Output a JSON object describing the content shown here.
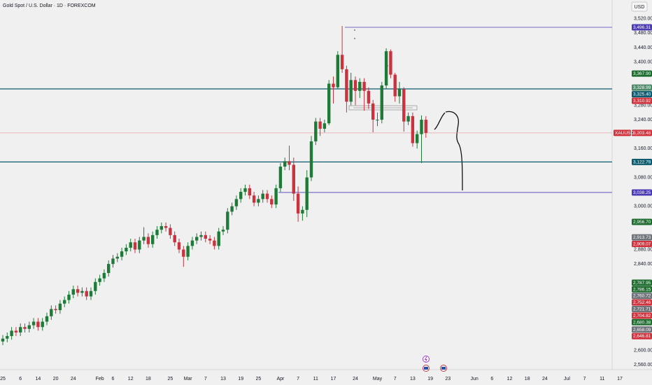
{
  "chart_data": {
    "type": "candlestick",
    "title": "Gold Spot / U.S. Dollar · 1D · FOREXCOM",
    "currency": "USD",
    "categories": [
      "25",
      null,
      null,
      null,
      "6",
      null,
      null,
      null,
      "14",
      null,
      null,
      null,
      "20",
      null,
      null,
      null,
      "24",
      null,
      null,
      null,
      null,
      null,
      "Feb",
      null,
      null,
      "6",
      null,
      null,
      null,
      "12",
      null,
      null,
      null,
      "18",
      null,
      null,
      null,
      null,
      "25",
      null,
      null,
      null,
      "Mar",
      null,
      null,
      null,
      "7",
      null,
      null,
      null,
      "13",
      null,
      null,
      null,
      "19",
      null,
      null,
      null,
      "25",
      null,
      null,
      null,
      null,
      "Apr",
      null,
      null,
      null,
      "7",
      null,
      null,
      null,
      "11",
      null,
      null,
      null,
      "17",
      null,
      null,
      null,
      null,
      "24",
      null,
      null,
      null,
      null,
      "May",
      null,
      null,
      null,
      "7",
      null,
      null,
      null,
      "13",
      null,
      null,
      null,
      "19",
      null,
      null,
      null,
      "23",
      null,
      null,
      null,
      null,
      null,
      "Jun",
      null,
      null,
      null,
      "6",
      null,
      null,
      null,
      "12",
      null,
      null,
      null,
      "18",
      null,
      null,
      null,
      "24",
      null,
      null,
      null,
      null,
      "Jul",
      null,
      null,
      null,
      "7",
      null,
      null,
      null,
      "11",
      null,
      null,
      null,
      "17"
    ],
    "open": [
      2625,
      2633,
      2640,
      2655,
      2650,
      2665,
      2660,
      2670,
      2680,
      2665,
      2680,
      2695,
      2715,
      2712,
      2730,
      2740,
      2755,
      2770,
      2760,
      2765,
      2750,
      2765,
      2790,
      2800,
      2815,
      2840,
      2855,
      2860,
      2875,
      2885,
      2900,
      2880,
      2905,
      2915,
      2895,
      2920,
      2935,
      2945,
      2940,
      2920,
      2900,
      2880,
      2860,
      2890,
      2905,
      2915,
      2920,
      2910,
      2905,
      2890,
      2930,
      2935,
      2985,
      3000,
      3020,
      3040,
      3050,
      3030,
      3010,
      3020,
      3035,
      3020,
      3005,
      3050,
      3110,
      3125,
      3115,
      3035,
      2980,
      2990,
      3080,
      3180,
      3235,
      3215,
      3230,
      3340,
      3330,
      3420,
      3380,
      3290,
      3350,
      3320,
      3345,
      3320,
      3285,
      3240,
      3240,
      3335,
      3430,
      3365,
      3305,
      3325,
      3235,
      3250,
      3175,
      3200,
      3240,
      null,
      null,
      null,
      null,
      null,
      null,
      null,
      null,
      null,
      null,
      null,
      null,
      null,
      null,
      null,
      null,
      null,
      null,
      null,
      null,
      null,
      null,
      null,
      null,
      null,
      null,
      null,
      null,
      null,
      null,
      null,
      null,
      null,
      null,
      null,
      null,
      null,
      null,
      null,
      null,
      null,
      null,
      null,
      null
    ],
    "high": [
      2643,
      2650,
      2665,
      2665,
      2675,
      2675,
      2680,
      2690,
      2690,
      2690,
      2705,
      2725,
      2725,
      2740,
      2750,
      2765,
      2780,
      2780,
      2775,
      2775,
      2775,
      2800,
      2810,
      2825,
      2850,
      2865,
      2870,
      2885,
      2895,
      2910,
      2910,
      2915,
      2942,
      2925,
      2930,
      2945,
      2955,
      2955,
      2950,
      2930,
      2910,
      2890,
      2900,
      2915,
      2925,
      2930,
      2930,
      2920,
      2915,
      2940,
      2945,
      2995,
      3010,
      3030,
      3050,
      3060,
      3060,
      3040,
      3030,
      3045,
      3045,
      3030,
      3060,
      3120,
      3135,
      3168,
      3135,
      3055,
      3000,
      3100,
      3195,
      3245,
      3245,
      3240,
      3350,
      3360,
      3430,
      3500,
      3390,
      3370,
      3360,
      3355,
      3355,
      3330,
      3295,
      3260,
      3345,
      3438,
      3435,
      3370,
      3345,
      3330,
      3260,
      3260,
      3210,
      3252,
      3250,
      null,
      null,
      null,
      null,
      null,
      null,
      null,
      null,
      null,
      null,
      null,
      null,
      null,
      null,
      null,
      null,
      null,
      null,
      null,
      null,
      null,
      null,
      null,
      null,
      null,
      null,
      null,
      null,
      null,
      null,
      null,
      null,
      null,
      null,
      null,
      null,
      null,
      null,
      null,
      null,
      null,
      null,
      null,
      null
    ],
    "low": [
      2615,
      2623,
      2630,
      2640,
      2640,
      2650,
      2650,
      2660,
      2655,
      2655,
      2670,
      2685,
      2702,
      2702,
      2720,
      2730,
      2745,
      2750,
      2750,
      2740,
      2740,
      2755,
      2780,
      2790,
      2805,
      2830,
      2845,
      2850,
      2865,
      2875,
      2870,
      2870,
      2895,
      2885,
      2885,
      2910,
      2925,
      2930,
      2910,
      2890,
      2870,
      2832,
      2850,
      2880,
      2895,
      2905,
      2900,
      2895,
      2880,
      2880,
      2920,
      2925,
      2975,
      2990,
      3010,
      3030,
      3020,
      3000,
      3000,
      3010,
      3010,
      2995,
      2995,
      3040,
      3100,
      3100,
      3015,
      2957,
      2960,
      2970,
      3070,
      3170,
      3195,
      3205,
      3225,
      3285,
      3325,
      3370,
      3260,
      3280,
      3280,
      3300,
      3265,
      3270,
      3205,
      3222,
      3230,
      3325,
      3355,
      3290,
      3285,
      3207,
      3225,
      3165,
      3160,
      3120,
      3190,
      null,
      null,
      null,
      null,
      null,
      null,
      null,
      null,
      null,
      null,
      null,
      null,
      null,
      null,
      null,
      null,
      null,
      null,
      null,
      null,
      null,
      null,
      null,
      null,
      null,
      null,
      null,
      null,
      null,
      null,
      null,
      null,
      null,
      null,
      null,
      null,
      null,
      null,
      null,
      null,
      null,
      null,
      null,
      null
    ],
    "close": [
      2633,
      2640,
      2655,
      2650,
      2665,
      2660,
      2670,
      2680,
      2665,
      2680,
      2695,
      2715,
      2712,
      2730,
      2740,
      2755,
      2770,
      2760,
      2765,
      2750,
      2765,
      2790,
      2800,
      2815,
      2840,
      2855,
      2860,
      2875,
      2885,
      2900,
      2880,
      2905,
      2915,
      2895,
      2920,
      2935,
      2945,
      2940,
      2920,
      2900,
      2880,
      2860,
      2890,
      2905,
      2915,
      2920,
      2910,
      2905,
      2890,
      2930,
      2935,
      2985,
      3000,
      3020,
      3040,
      3050,
      3030,
      3010,
      3020,
      3035,
      3020,
      3005,
      3050,
      3110,
      3125,
      3115,
      3035,
      2980,
      2990,
      3080,
      3180,
      3235,
      3215,
      3230,
      3340,
      3330,
      3420,
      3380,
      3290,
      3350,
      3320,
      3345,
      3320,
      3285,
      3240,
      3240,
      3335,
      3430,
      3365,
      3305,
      3325,
      3235,
      3250,
      3175,
      3200,
      3240,
      3203.48,
      null,
      null,
      null,
      null,
      null,
      null,
      null,
      null,
      null,
      null,
      null,
      null,
      null,
      null,
      null,
      null,
      null,
      null,
      null,
      null,
      null,
      null,
      null,
      null,
      null,
      null,
      null,
      null,
      null,
      null,
      null,
      null,
      null,
      null,
      null,
      null,
      null,
      null,
      null,
      null,
      null,
      null,
      null,
      null
    ],
    "up_color": "#1f7a38",
    "down_color": "#c9333f",
    "ylim": [
      2549,
      3572
    ],
    "yticks": [
      {
        "value": 3520,
        "label": "3,520.00"
      },
      {
        "value": 3480,
        "label": "3,480.00"
      },
      {
        "value": 3440,
        "label": "3,440.00"
      },
      {
        "value": 3400,
        "label": "3,400.00"
      },
      {
        "value": 3280,
        "label": "3,280.00"
      },
      {
        "value": 3240,
        "label": "3,240.00"
      },
      {
        "value": 3160,
        "label": "3,160.00"
      },
      {
        "value": 3080,
        "label": "3,080.00"
      },
      {
        "value": 3000,
        "label": "3,000.00"
      },
      {
        "value": 2880,
        "label": "2,880.00"
      },
      {
        "value": 2840,
        "label": "2,840.00"
      },
      {
        "value": 2600,
        "label": "2,600.00"
      },
      {
        "value": 2560,
        "label": "2,560.00"
      }
    ],
    "grid": false,
    "levels": [
      {
        "value": 3496.31,
        "label": "3,496.31",
        "color": "#4a3bb5",
        "line": true
      },
      {
        "value": 3367.9,
        "label": "3,367.90",
        "color": "#1e6b2f"
      },
      {
        "value": 3328.99,
        "label": "3,328.99",
        "color": "#4f8a6a"
      },
      {
        "value": 3325.4,
        "label": "3,325.40",
        "color": "#0c5a6e",
        "line": true
      },
      {
        "value": 3310.92,
        "label": "3,310.92",
        "color": "#d0333d"
      },
      {
        "value": 3203.48,
        "label": "3,203.48",
        "name": "XAUUSD",
        "color": "#d0333d",
        "line": true
      },
      {
        "value": 3122.79,
        "label": "3,122.79",
        "color": "#0c5a6e",
        "line": true
      },
      {
        "value": 3038.25,
        "label": "3,038.25",
        "color": "#4a3bb5",
        "line": true
      },
      {
        "value": 2956.7,
        "label": "2,956.70",
        "color": "#1e6b2f"
      },
      {
        "value": 2913.73,
        "label": "2,913.73",
        "color": "#6e7279"
      },
      {
        "value": 2909.07,
        "label": "2,909.07",
        "color": "#d0333d"
      },
      {
        "value": 2787.95,
        "label": "2,787.95",
        "color": "#1e6b2f"
      },
      {
        "value": 2786.15,
        "label": "2,786.15",
        "color": "#1e6b2f"
      },
      {
        "value": 2760.72,
        "label": "2,760.72",
        "color": "#6e7279"
      },
      {
        "value": 2752.46,
        "label": "2,752.46",
        "color": "#d0333d"
      },
      {
        "value": 2721.71,
        "label": "2,721.71",
        "color": "#6e7279"
      },
      {
        "value": 2704.82,
        "label": "2,704.82",
        "color": "#d0333d"
      },
      {
        "value": 2680.38,
        "label": "2,680.38",
        "color": "#1e6b2f"
      },
      {
        "value": 2658.09,
        "label": "2,658.09",
        "color": "#6e7279"
      },
      {
        "value": 2646.81,
        "label": "2,646.81",
        "color": "#d0333d"
      }
    ]
  }
}
